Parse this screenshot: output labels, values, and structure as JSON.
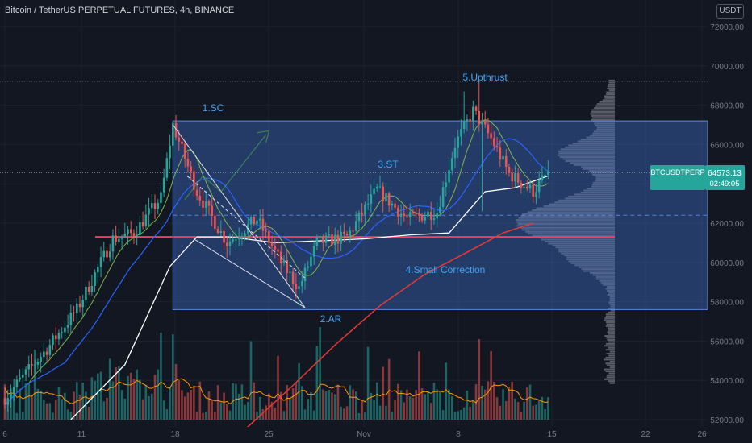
{
  "header": {
    "title": "Bitcoin / TetherUS PERPETUAL FUTURES, 4h, BINANCE",
    "currency": "USDT"
  },
  "price_tag": {
    "symbol": "BTCUSDTPERP",
    "price": "64573.13",
    "countdown": "02:49:05",
    "color": "#26a69a"
  },
  "colors": {
    "up": "#26a69a",
    "down": "#ef5350",
    "range_box": "#3d6ec9",
    "ma_red": "#e53935",
    "ma_white": "#ffffff",
    "ma_blue": "#2962ff",
    "volume_ma": "#ff9800",
    "annotation": "#42a5f5",
    "horizontal_line": "#f23c64"
  },
  "chart_data": {
    "type": "candlestick",
    "timeframe": "4h",
    "ylim": [
      51500,
      73000
    ],
    "y_ticks": [
      52000,
      54000,
      56000,
      58000,
      60000,
      62000,
      64000,
      66000,
      68000,
      70000,
      72000
    ],
    "y_tick_labels": [
      "52000.00",
      "54000.00",
      "56000.00",
      "58000.00",
      "60000.00",
      "62000.00",
      "64000.00",
      "66000.00",
      "68000.00",
      "70000.00",
      "72000.00"
    ],
    "x_ticks": [
      "6",
      "11",
      "18",
      "25",
      "Nov",
      "8",
      "15",
      "22",
      "26"
    ],
    "last_price": 64573.13,
    "price_path_keypoints": [
      {
        "bar": 0,
        "price": 53100
      },
      {
        "bar": 14,
        "price": 55600
      },
      {
        "bar": 24,
        "price": 57600
      },
      {
        "bar": 36,
        "price": 61200
      },
      {
        "bar": 43,
        "price": 61500
      },
      {
        "bar": 52,
        "price": 63300
      },
      {
        "bar": 56,
        "price": 67000
      },
      {
        "bar": 64,
        "price": 63600
      },
      {
        "bar": 74,
        "price": 61000
      },
      {
        "bar": 84,
        "price": 62200
      },
      {
        "bar": 92,
        "price": 60000
      },
      {
        "bar": 98,
        "price": 58700
      },
      {
        "bar": 104,
        "price": 61000
      },
      {
        "bar": 114,
        "price": 61300
      },
      {
        "bar": 124,
        "price": 63700
      },
      {
        "bar": 134,
        "price": 62200
      },
      {
        "bar": 144,
        "price": 62600
      },
      {
        "bar": 150,
        "price": 66000
      },
      {
        "bar": 156,
        "price": 67700
      },
      {
        "bar": 162,
        "price": 66300
      },
      {
        "bar": 168,
        "price": 64500
      },
      {
        "bar": 176,
        "price": 63600
      },
      {
        "bar": 181,
        "price": 64573
      }
    ],
    "range_box": {
      "from_bar": 56,
      "to_bar": "extends right",
      "top": 67200,
      "bottom": 57600
    },
    "horizontal_level": 61300,
    "dashed_level": 62400,
    "annotations": [
      {
        "text": "1.SC",
        "bar": 56,
        "price": 68000
      },
      {
        "text": "2.AR",
        "bar": 98,
        "price": 57600
      },
      {
        "text": "3.ST",
        "bar": 127,
        "price": 64900
      },
      {
        "text": "4.Small Correction",
        "bar": 140,
        "price": 59800
      },
      {
        "text": "5.Upthrust",
        "bar": 156,
        "price": 69300
      }
    ]
  }
}
